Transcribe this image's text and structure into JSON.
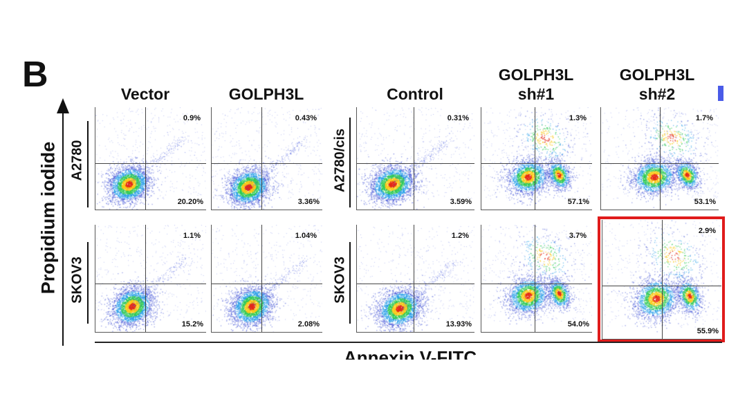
{
  "figure": {
    "panel_letter": "B",
    "y_axis_label": "Propidium iodide",
    "x_axis_label": "Annexin V-FITC",
    "group_left": {
      "columns": [
        {
          "title": "Vector"
        },
        {
          "title": "GOLPH3L"
        }
      ],
      "rows": [
        {
          "label": "A2780",
          "percents": [
            {
              "top": "0.9%",
              "bottom": "20.20%"
            },
            {
              "top": "0.43%",
              "bottom": "3.36%"
            }
          ]
        },
        {
          "label": "SKOV3",
          "percents": [
            {
              "top": "1.1%",
              "bottom": "15.2%"
            },
            {
              "top": "1.04%",
              "bottom": "2.08%"
            }
          ]
        }
      ]
    },
    "group_right": {
      "columns": [
        {
          "title": "Control"
        },
        {
          "title_line1": "GOLPH3L",
          "title_line2": "sh#1"
        },
        {
          "title_line1": "GOLPH3L",
          "title_line2": "sh#2"
        }
      ],
      "rows": [
        {
          "label": "A2780/cis",
          "percents": [
            {
              "top": "0.31%",
              "bottom": "3.59%"
            },
            {
              "top": "1.3%",
              "bottom": "57.1%"
            },
            {
              "top": "1.7%",
              "bottom": "53.1%"
            }
          ]
        },
        {
          "label": "SKOV3",
          "percents": [
            {
              "top": "1.2%",
              "bottom": "13.93%"
            },
            {
              "top": "3.7%",
              "bottom": "54.0%"
            },
            {
              "top": "2.9%",
              "bottom": "55.9%"
            }
          ]
        }
      ]
    },
    "highlighted_plot": "group_right.row2.col3",
    "colors": {
      "highlight": "#e01b1b",
      "accent_mark": "#4a5be8"
    }
  }
}
